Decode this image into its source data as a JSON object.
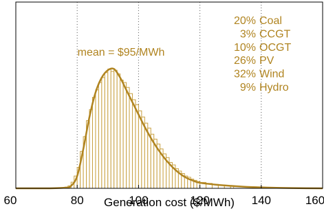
{
  "chart_data": {
    "type": "bar",
    "title": "",
    "xlabel": "Generation cost ($/MWh)",
    "ylabel": "",
    "xlim": [
      60,
      160
    ],
    "xticks": [
      60,
      80,
      100,
      120,
      140,
      160
    ],
    "ylim": [
      0,
      1.0
    ],
    "grid": {
      "x_dotted": [
        80,
        100,
        120,
        140
      ],
      "y": false
    },
    "colors": {
      "bars": "#c8a040",
      "curve": "#b08420",
      "text": "#b08420",
      "grid": "#555555"
    },
    "annotation": "mean = $95/MWh",
    "mix": [
      {
        "pct": "20%",
        "tech": "Coal"
      },
      {
        "pct": "3%",
        "tech": "CCGT"
      },
      {
        "pct": "10%",
        "tech": "OCGT"
      },
      {
        "pct": "26%",
        "tech": "PV"
      },
      {
        "pct": "32%",
        "tech": "Wind"
      },
      {
        "pct": "9%",
        "tech": "Hydro"
      }
    ],
    "curve": {
      "x": [
        60,
        70,
        76,
        78,
        80,
        82,
        84,
        86,
        88,
        90,
        92,
        94,
        96,
        98,
        100,
        102,
        104,
        106,
        108,
        110,
        112,
        114,
        116,
        118,
        120,
        125,
        130,
        135,
        140,
        145,
        150,
        160
      ],
      "y": [
        0.0,
        0.0,
        0.005,
        0.02,
        0.1,
        0.32,
        0.58,
        0.78,
        0.9,
        0.96,
        0.97,
        0.9,
        0.8,
        0.7,
        0.6,
        0.5,
        0.41,
        0.33,
        0.26,
        0.2,
        0.15,
        0.11,
        0.08,
        0.06,
        0.045,
        0.03,
        0.02,
        0.012,
        0.008,
        0.004,
        0.002,
        0.0
      ]
    },
    "histogram": {
      "bin_width": 1,
      "bin_start": [
        76,
        77,
        78,
        79,
        80,
        81,
        82,
        83,
        84,
        85,
        86,
        87,
        88,
        89,
        90,
        91,
        92,
        93,
        94,
        95,
        96,
        97,
        98,
        99,
        100,
        101,
        102,
        103,
        104,
        105,
        106,
        107,
        108,
        109,
        110,
        111,
        112,
        113,
        114,
        115,
        116,
        117,
        118,
        119,
        120,
        122,
        124,
        126,
        128,
        130
      ],
      "values": [
        0.01,
        0.02,
        0.05,
        0.1,
        0.17,
        0.3,
        0.42,
        0.55,
        0.64,
        0.74,
        0.8,
        0.86,
        0.9,
        0.94,
        0.97,
        0.95,
        0.96,
        0.93,
        0.88,
        0.86,
        0.82,
        0.77,
        0.72,
        0.68,
        0.63,
        0.58,
        0.53,
        0.49,
        0.44,
        0.4,
        0.36,
        0.32,
        0.28,
        0.25,
        0.21,
        0.19,
        0.16,
        0.14,
        0.12,
        0.1,
        0.09,
        0.075,
        0.065,
        0.055,
        0.048,
        0.04,
        0.032,
        0.026,
        0.02,
        0.016
      ]
    }
  }
}
